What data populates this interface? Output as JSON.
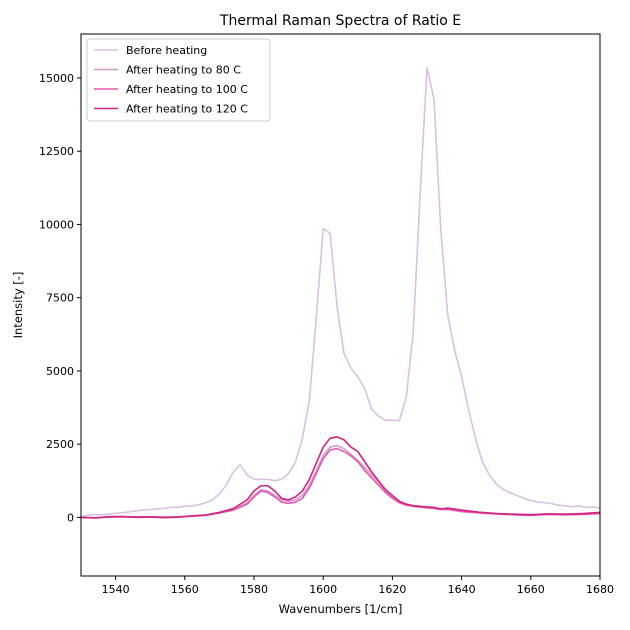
{
  "chart_data": {
    "type": "line",
    "title": "Thermal Raman Spectra of Ratio E",
    "xlabel": "Wavenumbers [1/cm]",
    "ylabel": "Intensity [-]",
    "xlim": [
      1530,
      1680
    ],
    "ylim": [
      -2000,
      16500
    ],
    "xticks": [
      1540,
      1560,
      1580,
      1600,
      1620,
      1640,
      1660,
      1680
    ],
    "yticks": [
      0,
      2500,
      5000,
      7500,
      10000,
      12500,
      15000
    ],
    "grid": false,
    "legend_position": "upper-left",
    "series": [
      {
        "name": "Before heating",
        "color": "#dcbfe3",
        "x": [
          1530,
          1532,
          1534,
          1536,
          1538,
          1540,
          1542,
          1544,
          1546,
          1548,
          1550,
          1552,
          1554,
          1556,
          1558,
          1560,
          1562,
          1564,
          1566,
          1568,
          1570,
          1572,
          1574,
          1576,
          1578,
          1580,
          1582,
          1584,
          1586,
          1588,
          1590,
          1592,
          1594,
          1596,
          1598,
          1600,
          1602,
          1604,
          1606,
          1608,
          1610,
          1612,
          1614,
          1616,
          1618,
          1620,
          1622,
          1624,
          1626,
          1628,
          1630,
          1632,
          1634,
          1636,
          1638,
          1640,
          1642,
          1644,
          1646,
          1648,
          1650,
          1652,
          1654,
          1656,
          1658,
          1660,
          1662,
          1664,
          1666,
          1668,
          1670,
          1672,
          1674,
          1676,
          1678,
          1680
        ],
        "y": [
          30,
          70,
          100,
          90,
          110,
          140,
          160,
          190,
          220,
          250,
          270,
          290,
          310,
          340,
          350,
          380,
          390,
          430,
          500,
          600,
          800,
          1100,
          1550,
          1800,
          1450,
          1300,
          1300,
          1300,
          1250,
          1300,
          1500,
          1900,
          2700,
          4000,
          6800,
          9850,
          9700,
          7200,
          5600,
          5100,
          4800,
          4400,
          3700,
          3450,
          3320,
          3320,
          3300,
          4100,
          6300,
          11000,
          15350,
          14300,
          9800,
          6900,
          5700,
          4800,
          3700,
          2700,
          1900,
          1450,
          1150,
          950,
          850,
          750,
          650,
          580,
          530,
          500,
          470,
          420,
          390,
          360,
          390,
          340,
          360,
          320
        ]
      },
      {
        "name": "After heating to 80 C",
        "color": "#cf9bd0",
        "x": [
          1530,
          1534,
          1538,
          1542,
          1546,
          1550,
          1554,
          1558,
          1562,
          1566,
          1570,
          1574,
          1578,
          1580,
          1582,
          1584,
          1586,
          1588,
          1590,
          1592,
          1594,
          1596,
          1598,
          1600,
          1602,
          1604,
          1606,
          1608,
          1610,
          1612,
          1614,
          1616,
          1618,
          1620,
          1622,
          1624,
          1626,
          1628,
          1630,
          1632,
          1634,
          1636,
          1640,
          1645,
          1650,
          1655,
          1660,
          1665,
          1670,
          1675,
          1680
        ],
        "y": [
          0,
          -10,
          20,
          30,
          10,
          20,
          10,
          20,
          50,
          80,
          150,
          250,
          500,
          750,
          950,
          900,
          750,
          600,
          550,
          600,
          750,
          1100,
          1600,
          2100,
          2400,
          2450,
          2350,
          2150,
          1950,
          1700,
          1450,
          1200,
          900,
          700,
          520,
          450,
          400,
          360,
          320,
          300,
          280,
          300,
          220,
          160,
          130,
          110,
          100,
          120,
          110,
          120,
          150
        ]
      },
      {
        "name": "After heating to 100 C",
        "color": "#e25bb0",
        "x": [
          1530,
          1534,
          1538,
          1542,
          1546,
          1550,
          1554,
          1558,
          1562,
          1566,
          1570,
          1574,
          1578,
          1580,
          1582,
          1584,
          1586,
          1588,
          1590,
          1592,
          1594,
          1596,
          1598,
          1600,
          1602,
          1604,
          1606,
          1608,
          1610,
          1612,
          1614,
          1616,
          1618,
          1620,
          1622,
          1624,
          1626,
          1628,
          1630,
          1632,
          1634,
          1636,
          1640,
          1645,
          1650,
          1655,
          1660,
          1665,
          1670,
          1675,
          1680
        ],
        "y": [
          0,
          -20,
          10,
          20,
          0,
          10,
          -10,
          10,
          40,
          70,
          150,
          250,
          450,
          700,
          900,
          850,
          700,
          520,
          480,
          520,
          650,
          1000,
          1500,
          2000,
          2300,
          2350,
          2250,
          2100,
          1900,
          1600,
          1350,
          1100,
          850,
          650,
          500,
          420,
          380,
          350,
          330,
          310,
          270,
          270,
          200,
          150,
          120,
          90,
          70,
          100,
          90,
          100,
          130
        ]
      },
      {
        "name": "After heating to 120 C",
        "color": "#d4237f",
        "x": [
          1530,
          1534,
          1538,
          1542,
          1546,
          1550,
          1554,
          1558,
          1562,
          1566,
          1570,
          1574,
          1578,
          1580,
          1582,
          1584,
          1586,
          1588,
          1590,
          1592,
          1594,
          1596,
          1598,
          1600,
          1602,
          1604,
          1606,
          1608,
          1610,
          1612,
          1614,
          1616,
          1618,
          1620,
          1622,
          1624,
          1626,
          1628,
          1630,
          1632,
          1634,
          1636,
          1640,
          1645,
          1650,
          1655,
          1660,
          1665,
          1670,
          1675,
          1680
        ],
        "y": [
          0,
          -20,
          20,
          30,
          10,
          20,
          0,
          10,
          50,
          80,
          170,
          300,
          600,
          900,
          1080,
          1080,
          900,
          650,
          600,
          700,
          900,
          1300,
          1850,
          2400,
          2700,
          2750,
          2650,
          2400,
          2250,
          1900,
          1550,
          1250,
          950,
          750,
          550,
          450,
          400,
          380,
          360,
          340,
          290,
          320,
          250,
          180,
          130,
          110,
          90,
          120,
          110,
          130,
          170
        ]
      }
    ]
  }
}
